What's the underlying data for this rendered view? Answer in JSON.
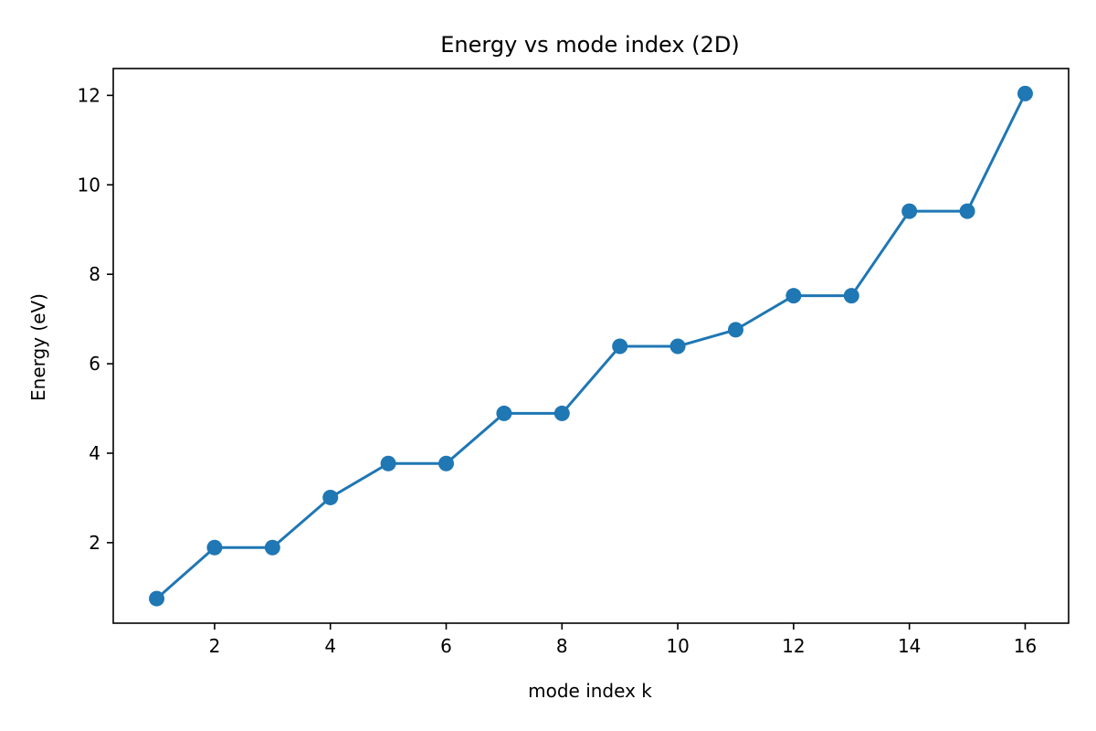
{
  "chart_data": {
    "type": "line",
    "title": "Energy vs mode index (2D)",
    "xlabel": "mode index k",
    "ylabel": "Energy (eV)",
    "xlim": [
      0.25,
      16.75
    ],
    "ylim": [
      0.2,
      12.6
    ],
    "x_ticks": [
      2,
      4,
      6,
      8,
      10,
      12,
      14,
      16
    ],
    "y_ticks": [
      2,
      4,
      6,
      8,
      10,
      12
    ],
    "x_tick_labels": [
      "2",
      "4",
      "6",
      "8",
      "10",
      "12",
      "14",
      "16"
    ],
    "y_tick_labels": [
      "2",
      "4",
      "6",
      "8",
      "10",
      "12"
    ],
    "grid": false,
    "markers": "circle",
    "series": [
      {
        "color": "#1f77b4",
        "x": [
          1,
          2,
          3,
          4,
          5,
          6,
          7,
          8,
          9,
          10,
          11,
          12,
          13,
          14,
          15,
          16
        ],
        "y": [
          0.75,
          1.89,
          1.89,
          3.01,
          3.77,
          3.77,
          4.89,
          4.89,
          6.39,
          6.39,
          6.76,
          7.52,
          7.52,
          9.41,
          9.41,
          12.04
        ]
      }
    ]
  }
}
